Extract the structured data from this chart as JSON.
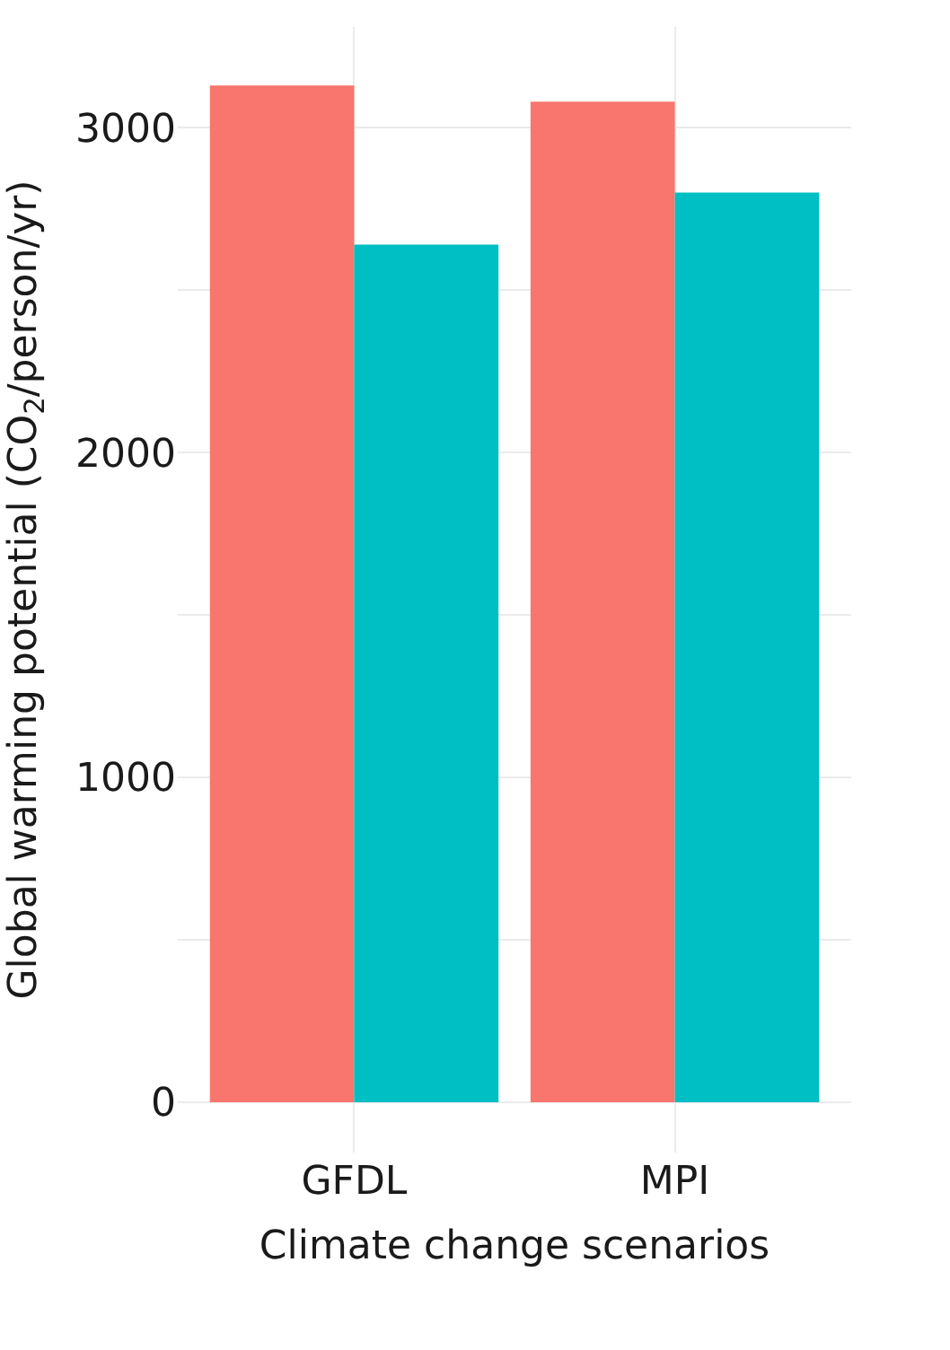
{
  "chart_data": {
    "type": "bar",
    "xlabel": "Climate change scenarios",
    "ylabel": "Global warming potential (CO$_{2}$/person/yr)",
    "categories": [
      "GFDL",
      "MPI"
    ],
    "series": [
      {
        "color": "#f8766d",
        "values": [
          3130,
          3080
        ]
      },
      {
        "color": "#00bfc4",
        "values": [
          2640,
          2800
        ]
      }
    ],
    "ylim": [
      -155,
      3310
    ],
    "yticks": [
      0,
      {
        "value": 500,
        "label": null
      },
      1000,
      {
        "value": 1500,
        "label": null
      },
      2000,
      {
        "value": 2500,
        "label": null
      },
      3000
    ],
    "grid": true
  }
}
